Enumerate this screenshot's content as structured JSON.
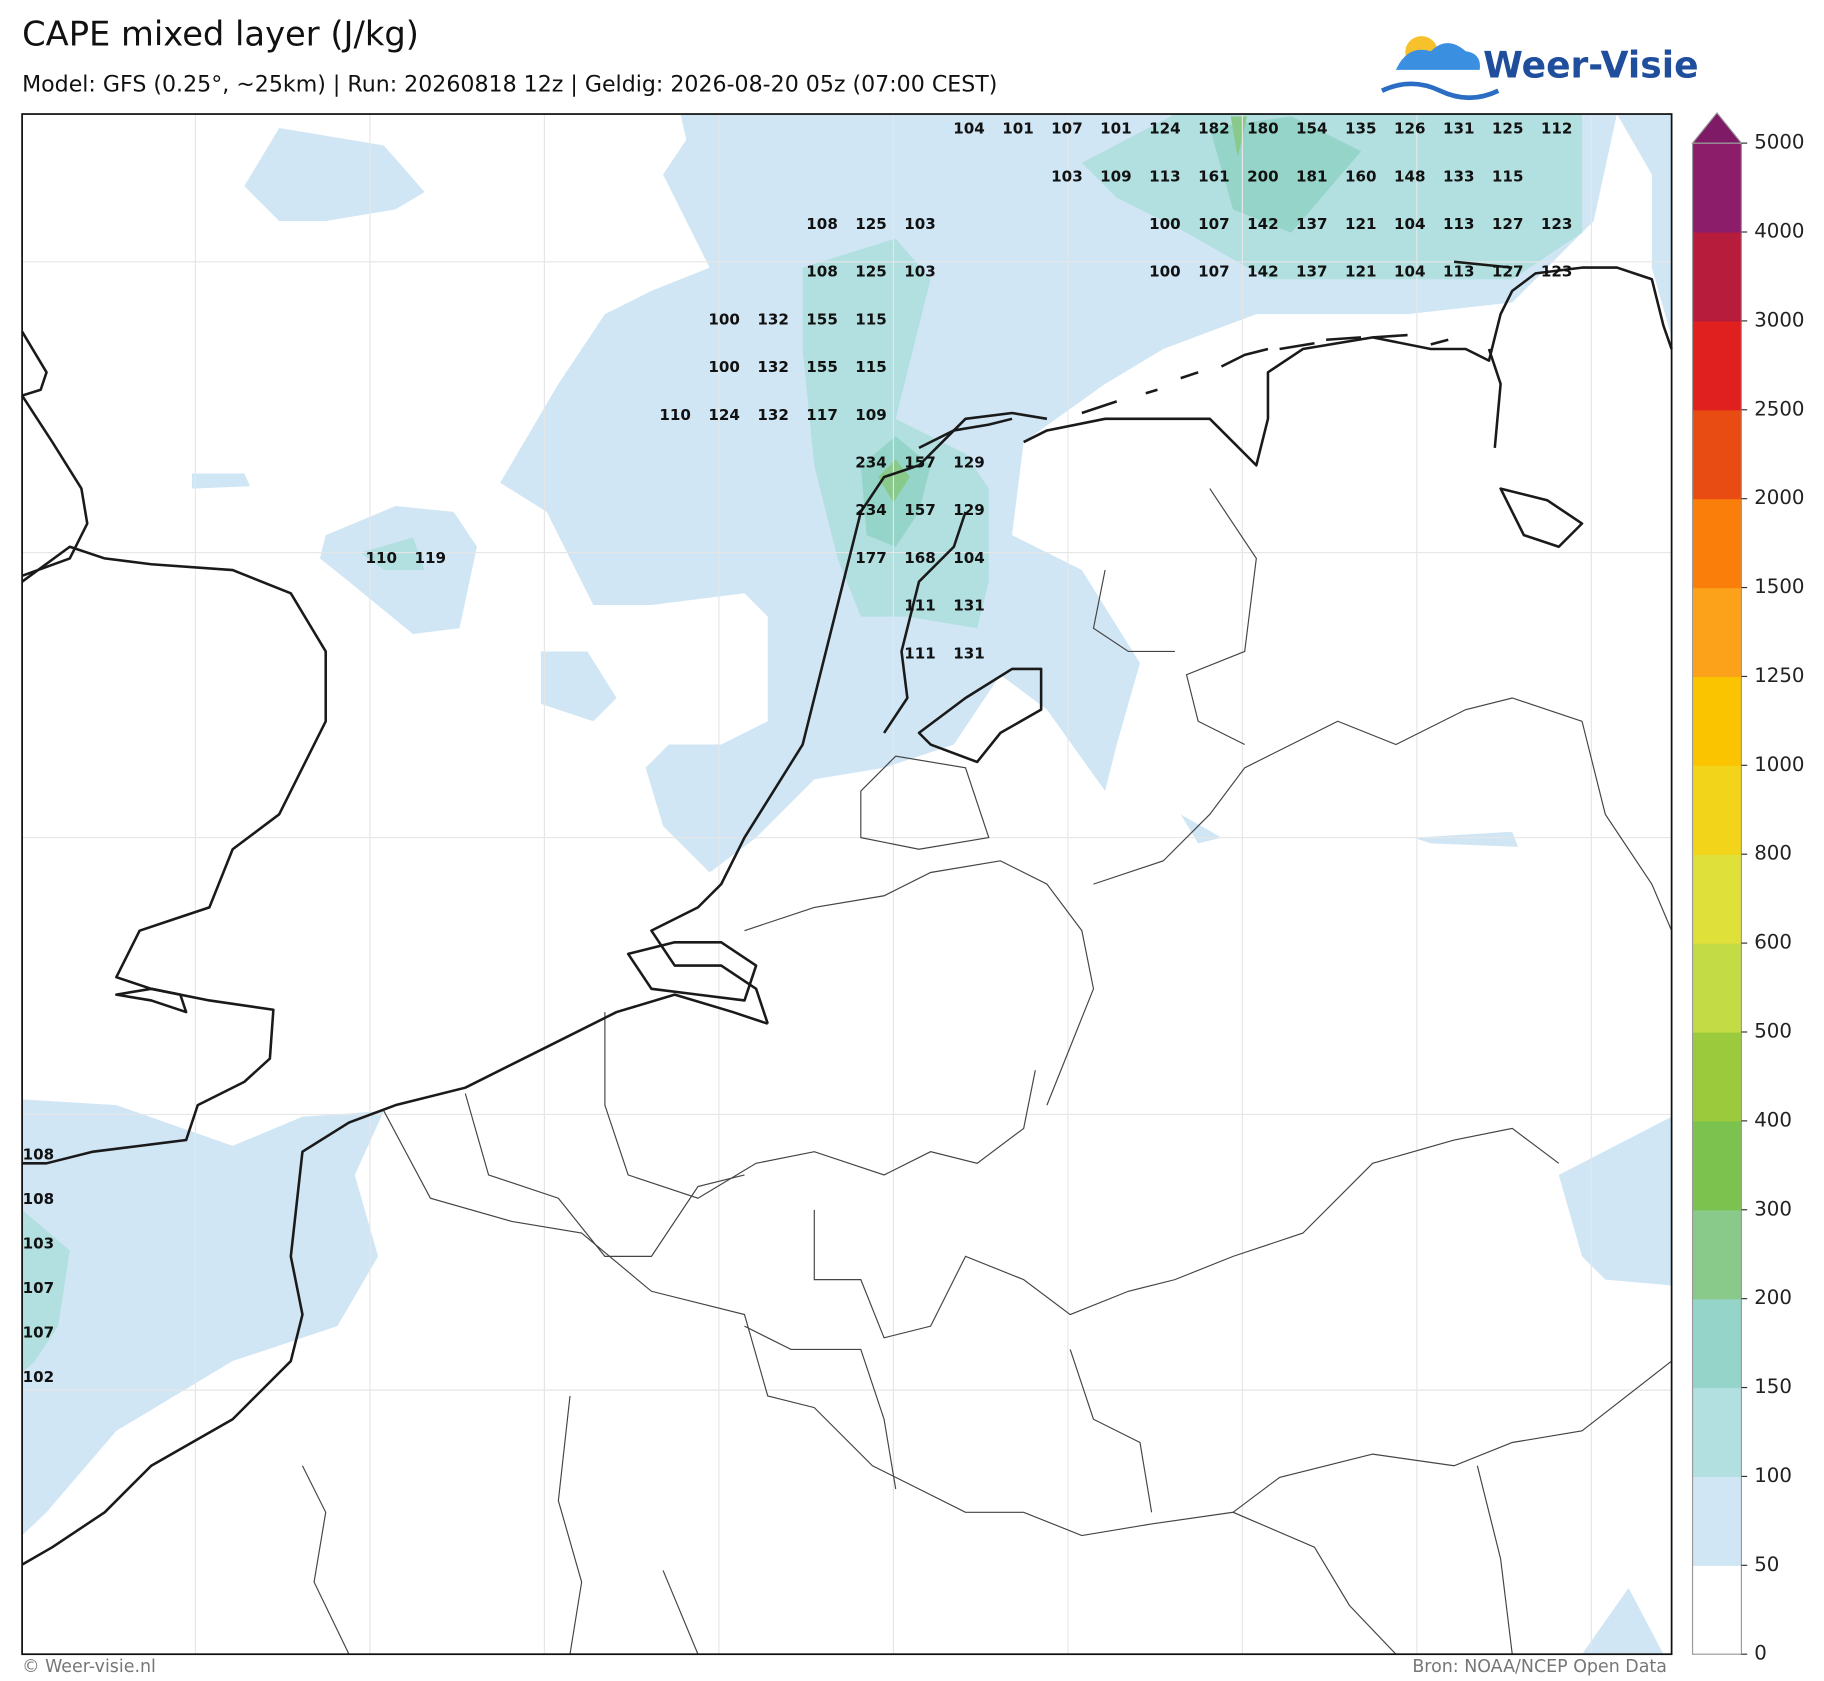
{
  "header": {
    "title": "CAPE mixed layer (J/kg)",
    "subtitle": "Model: GFS (0.25°, ~25km)  |  Run: 20260818 12z  |  Geldig: 2026-08-20 05z (07:00 CEST)"
  },
  "logo": "Weer-Visie",
  "colorbar": {
    "levels": [
      0,
      50,
      100,
      150,
      200,
      300,
      400,
      500,
      600,
      800,
      1000,
      1250,
      1500,
      2000,
      2500,
      3000,
      4000,
      5000
    ],
    "colors": [
      "#ffffff",
      "#d0e6f5",
      "#b2dfe0",
      "#95d4c8",
      "#89c98a",
      "#7bc24f",
      "#9bcb3c",
      "#c3dc45",
      "#e0e03a",
      "#f2d41a",
      "#fbc400",
      "#fca21a",
      "#f97e0a",
      "#e84c13",
      "#e01f1f",
      "#b71c3c",
      "#8c1d6b"
    ],
    "extend_color": "#7e1a66"
  },
  "map": {
    "label_groups": [
      [
        104,
        101,
        107,
        101,
        124,
        182,
        180,
        154,
        135,
        126,
        131,
        125,
        112
      ],
      [
        103,
        109,
        113,
        161,
        200,
        181,
        160,
        148,
        133,
        115
      ],
      [
        108,
        125,
        103
      ],
      [
        100,
        107,
        142,
        137,
        121,
        104,
        113,
        127,
        123
      ],
      [
        108,
        125,
        103
      ],
      [
        100,
        107,
        142,
        137,
        121,
        104,
        113,
        127,
        123
      ],
      [
        100,
        132,
        155,
        115
      ],
      [
        100,
        132,
        155,
        115
      ],
      [
        110,
        124,
        132,
        117,
        109
      ],
      [
        234,
        157,
        129
      ],
      [
        234,
        157,
        129
      ],
      [
        177,
        168,
        104
      ],
      [
        110,
        119
      ],
      [
        111,
        131
      ],
      [
        111,
        131
      ],
      [
        108,
        108,
        103,
        107,
        107,
        102
      ]
    ]
  },
  "footer": {
    "left": "© Weer-visie.nl",
    "right": "Bron: NOAA/NCEP Open Data"
  }
}
